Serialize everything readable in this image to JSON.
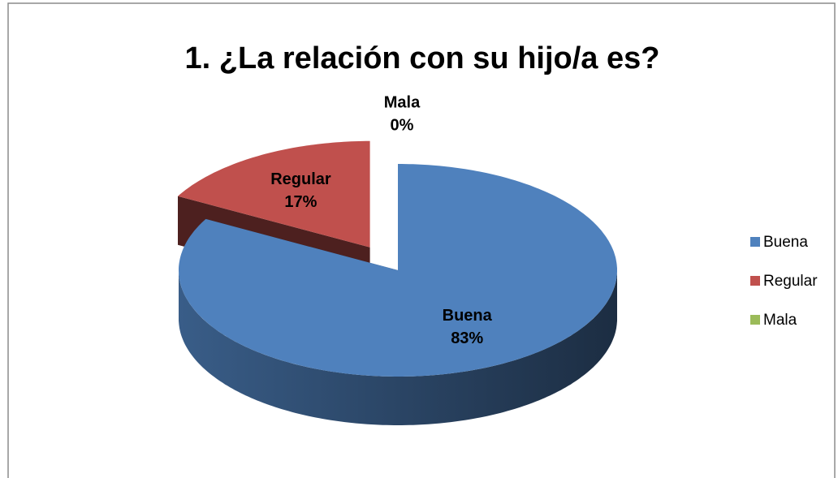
{
  "chart_data": {
    "type": "pie",
    "title": "1. ¿La relación con su hijo/a es?",
    "categories": [
      "Buena",
      "Regular",
      "Mala"
    ],
    "values": [
      83,
      17,
      0
    ],
    "value_labels": [
      "83%",
      "17%",
      "0%"
    ],
    "colors": [
      "#4f81bd",
      "#c0504d",
      "#9bbb59"
    ],
    "legend": "right"
  }
}
